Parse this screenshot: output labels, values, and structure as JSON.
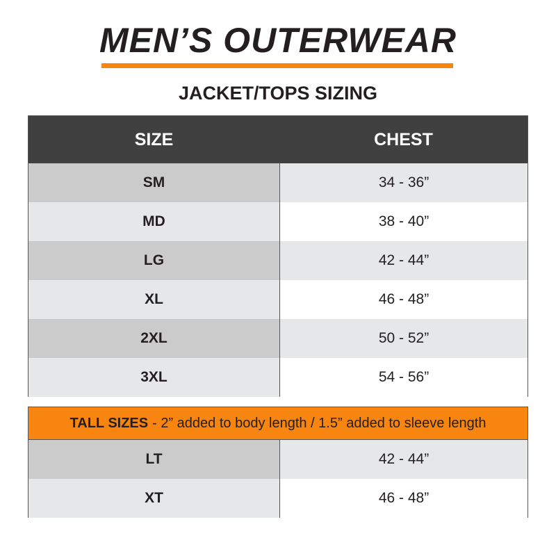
{
  "title": "MEN’S OUTERWEAR",
  "subtitle": "JACKET/TOPS SIZING",
  "colors": {
    "accent": "#f7850f",
    "header_bg": "#404040",
    "row_shade_dark": "#cbcbcc",
    "row_shade_light": "#e6e7e9"
  },
  "table": {
    "headers": [
      "SIZE",
      "CHEST"
    ],
    "rows": [
      {
        "size": "SM",
        "chest": "34 - 36”"
      },
      {
        "size": "MD",
        "chest": "38 - 40”"
      },
      {
        "size": "LG",
        "chest": "42 - 44”"
      },
      {
        "size": "XL",
        "chest": "46 - 48”"
      },
      {
        "size": "2XL",
        "chest": "50 - 52”"
      },
      {
        "size": "3XL",
        "chest": "54 - 56”"
      }
    ]
  },
  "tall": {
    "label": "TALL SIZES",
    "note": "- 2” added to body length / 1.5” added to sleeve length",
    "rows": [
      {
        "size": "LT",
        "chest": "42 - 44”"
      },
      {
        "size": "XT",
        "chest": "46 - 48”"
      }
    ]
  }
}
